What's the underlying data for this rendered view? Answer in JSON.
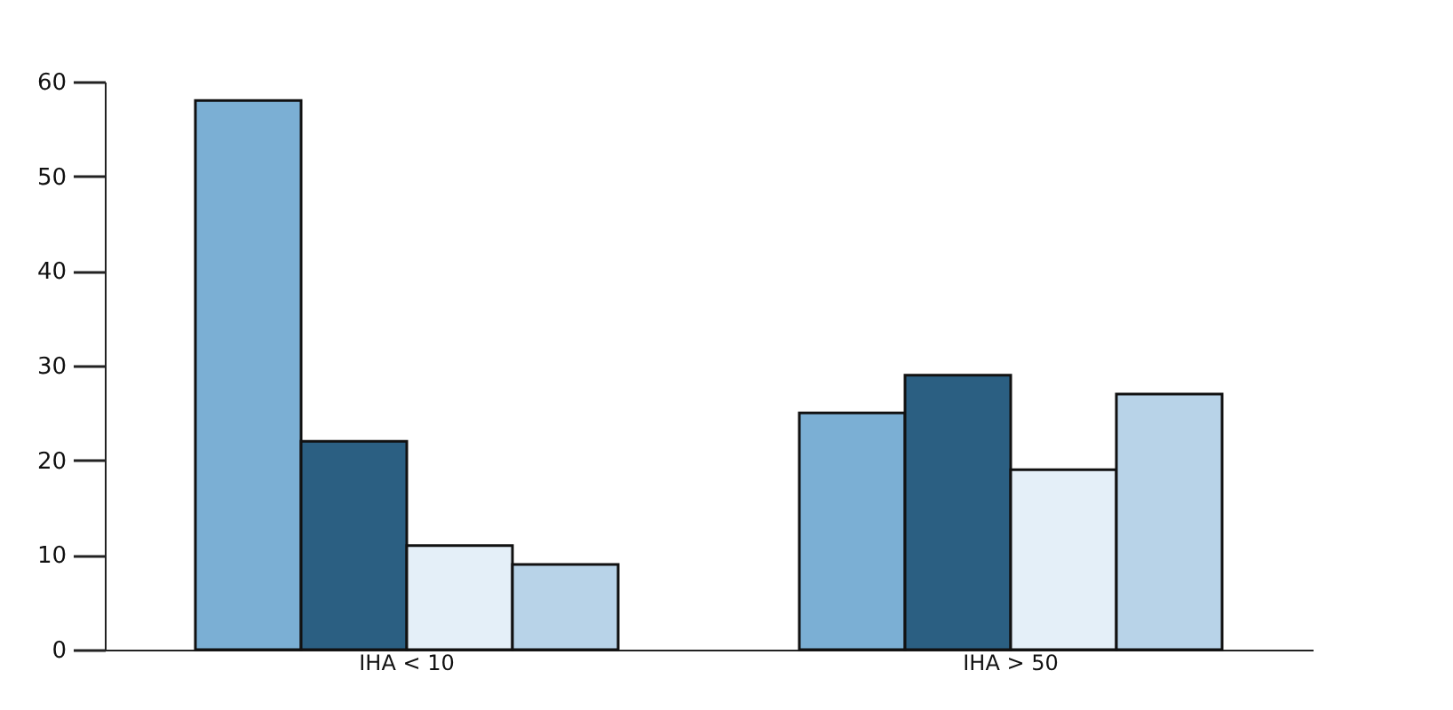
{
  "chart_data": {
    "type": "bar",
    "categories": [
      "IHA < 10",
      "IHA > 50"
    ],
    "series": [
      {
        "color": "#7bafd4",
        "values": [
          58,
          25
        ]
      },
      {
        "color": "#2b5f82",
        "values": [
          22,
          29
        ]
      },
      {
        "color": "#e4eff8",
        "values": [
          11,
          19
        ]
      },
      {
        "color": "#b8d3e8",
        "values": [
          9,
          27
        ]
      }
    ],
    "ylim": [
      0,
      60
    ],
    "yticks": [
      0,
      10,
      20,
      30,
      40,
      50,
      60
    ],
    "grid": false,
    "legend": false
  }
}
